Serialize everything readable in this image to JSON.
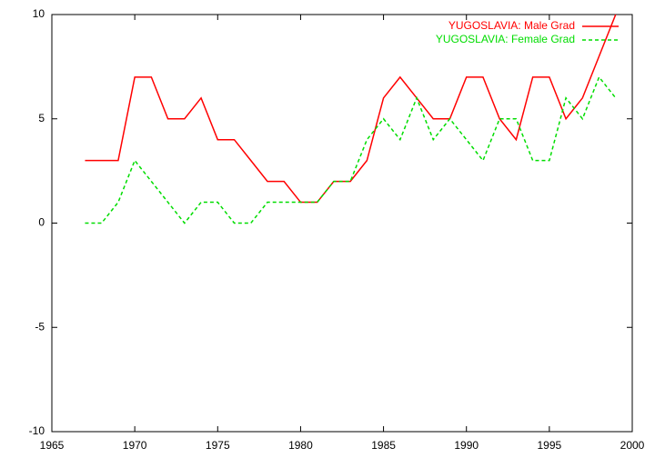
{
  "chart_data": {
    "type": "line",
    "x": [
      1967,
      1968,
      1969,
      1970,
      1971,
      1972,
      1973,
      1974,
      1975,
      1976,
      1977,
      1978,
      1979,
      1980,
      1981,
      1982,
      1983,
      1984,
      1985,
      1986,
      1987,
      1988,
      1989,
      1990,
      1991,
      1992,
      1993,
      1994,
      1995,
      1996,
      1997,
      1998,
      1999
    ],
    "series": [
      {
        "name": "YUGOSLAVIA: Male Grad",
        "color": "#ff0000",
        "dash": false,
        "values": [
          3,
          3,
          3,
          7,
          7,
          5,
          5,
          6,
          4,
          4,
          3,
          2,
          2,
          1,
          1,
          2,
          2,
          3,
          6,
          7,
          6,
          5,
          5,
          7,
          7,
          5,
          4,
          7,
          7,
          5,
          6,
          8,
          10
        ]
      },
      {
        "name": "YUGOSLAVIA: Female Grad",
        "color": "#00dd00",
        "dash": true,
        "values": [
          0,
          0,
          1,
          3,
          2,
          1,
          0,
          1,
          1,
          0,
          0,
          1,
          1,
          1,
          1,
          2,
          2,
          4,
          5,
          4,
          6,
          4,
          5,
          4,
          3,
          5,
          5,
          3,
          3,
          6,
          5,
          7,
          6
        ]
      }
    ],
    "xlim": [
      1965,
      2000
    ],
    "xticks": [
      1965,
      1970,
      1975,
      1980,
      1985,
      1990,
      1995,
      2000
    ],
    "ylim": [
      -10,
      10
    ],
    "yticks": [
      -10,
      -5,
      0,
      5,
      10
    ],
    "grid": false,
    "legend": "top-right"
  }
}
